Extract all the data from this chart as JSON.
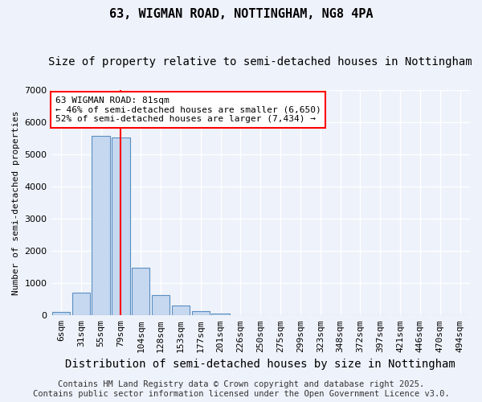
{
  "title": "63, WIGMAN ROAD, NOTTINGHAM, NG8 4PA",
  "subtitle": "Size of property relative to semi-detached houses in Nottingham",
  "xlabel": "Distribution of semi-detached houses by size in Nottingham",
  "ylabel": "Number of semi-detached properties",
  "categories": [
    "6sqm",
    "31sqm",
    "55sqm",
    "79sqm",
    "104sqm",
    "128sqm",
    "153sqm",
    "177sqm",
    "201sqm",
    "226sqm",
    "250sqm",
    "275sqm",
    "299sqm",
    "323sqm",
    "348sqm",
    "372sqm",
    "397sqm",
    "421sqm",
    "446sqm",
    "470sqm",
    "494sqm"
  ],
  "values": [
    100,
    700,
    5560,
    5510,
    1470,
    620,
    300,
    120,
    60,
    0,
    0,
    0,
    0,
    0,
    0,
    0,
    0,
    0,
    0,
    0,
    0
  ],
  "bar_color": "#c5d8f0",
  "bar_edge_color": "#5a8fc0",
  "vline_x_index": 3,
  "vline_color": "red",
  "annotation_text": "63 WIGMAN ROAD: 81sqm\n← 46% of semi-detached houses are smaller (6,650)\n52% of semi-detached houses are larger (7,434) →",
  "annotation_box_facecolor": "white",
  "annotation_box_edgecolor": "red",
  "ylim": [
    0,
    7000
  ],
  "yticks": [
    0,
    1000,
    2000,
    3000,
    4000,
    5000,
    6000,
    7000
  ],
  "background_color": "#eef2fa",
  "plot_bg_color": "#eef2fa",
  "grid_color": "white",
  "footer_text": "Contains HM Land Registry data © Crown copyright and database right 2025.\nContains public sector information licensed under the Open Government Licence v3.0.",
  "title_fontsize": 11,
  "subtitle_fontsize": 10,
  "xlabel_fontsize": 10,
  "ylabel_fontsize": 8,
  "tick_fontsize": 8,
  "annotation_fontsize": 8,
  "footer_fontsize": 7.5
}
